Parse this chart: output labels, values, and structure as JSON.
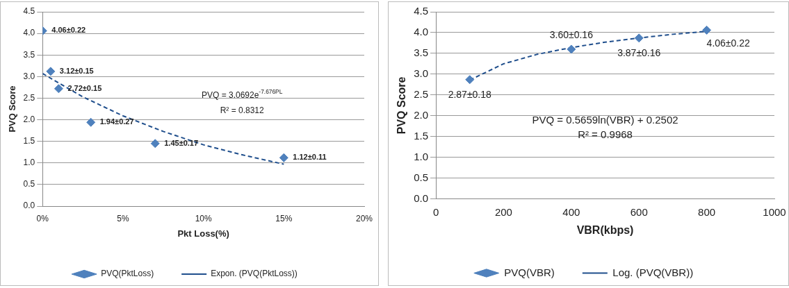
{
  "chart_data": [
    {
      "type": "scatter",
      "xlabel": "Pkt Loss(%)",
      "ylabel": "PVQ Score",
      "xlim": [
        0,
        20
      ],
      "xticks": [
        {
          "value": 0,
          "label": "0%"
        },
        {
          "value": 5,
          "label": "5%"
        },
        {
          "value": 10,
          "label": "10%"
        },
        {
          "value": 15,
          "label": "15%"
        },
        {
          "value": 20,
          "label": "20%"
        }
      ],
      "ylim": [
        0,
        4.5
      ],
      "yticks": [
        {
          "value": 0,
          "label": "0.0"
        },
        {
          "value": 0.5,
          "label": "0.5"
        },
        {
          "value": 1,
          "label": "1.0"
        },
        {
          "value": 1.5,
          "label": "1.5"
        },
        {
          "value": 2,
          "label": "2.0"
        },
        {
          "value": 2.5,
          "label": "2.5"
        },
        {
          "value": 3,
          "label": "3.0"
        },
        {
          "value": 3.5,
          "label": "3.5"
        },
        {
          "value": 4,
          "label": "4.0"
        },
        {
          "value": 4.5,
          "label": "4.5"
        }
      ],
      "grid": "y",
      "legend": "bottom",
      "annotations": [
        "PVQ = 3.0692e$^{-7.676PL}$",
        "R² = 0.8312"
      ],
      "series": [
        {
          "name": "PVQ(PktLoss)",
          "type": "scatter",
          "color": "#4f81bd",
          "marker": "diamond",
          "x": [
            0,
            0.5,
            1,
            3,
            7,
            15
          ],
          "values": [
            4.06,
            3.12,
            2.72,
            1.94,
            1.45,
            1.12
          ],
          "value_labels": [
            "4.06±0.22",
            "3.12±0.15",
            "2.72±0.15",
            "1.94±0.27",
            "1.45±0.17",
            "1.12±0.11"
          ]
        },
        {
          "name": "Expon. (PVQ(PktLoss))",
          "type": "line",
          "color": "#1f4e8c",
          "line_style": "dashed",
          "marker": "none",
          "x": [
            0,
            2.5,
            5,
            7.5,
            10,
            12.5,
            15
          ],
          "values": [
            3.07,
            2.53,
            2.09,
            1.73,
            1.42,
            1.18,
            0.97
          ]
        }
      ]
    },
    {
      "type": "scatter",
      "xlabel": "VBR(kbps)",
      "ylabel": "PVQ Score",
      "xlim": [
        0,
        1000
      ],
      "xticks": [
        0,
        200,
        400,
        600,
        800,
        1000
      ],
      "ylim": [
        0,
        4.5
      ],
      "yticks": [
        {
          "value": 0,
          "label": "0.0"
        },
        {
          "value": 0.5,
          "label": "0.5"
        },
        {
          "value": 1,
          "label": "1.0"
        },
        {
          "value": 1.5,
          "label": "1.5"
        },
        {
          "value": 2,
          "label": "2.0"
        },
        {
          "value": 2.5,
          "label": "2.5"
        },
        {
          "value": 3,
          "label": "3.0"
        },
        {
          "value": 3.5,
          "label": "3.5"
        },
        {
          "value": 4,
          "label": "4.0"
        },
        {
          "value": 4.5,
          "label": "4.5"
        }
      ],
      "grid": "y",
      "legend": "bottom",
      "annotations": [
        "PVQ = 0.5659ln(VBR) + 0.2502",
        "R² = 0.9968"
      ],
      "series": [
        {
          "name": "PVQ(VBR)",
          "type": "scatter",
          "color": "#4f81bd",
          "marker": "diamond",
          "x": [
            100,
            400,
            600,
            800
          ],
          "values": [
            2.87,
            3.6,
            3.87,
            4.06
          ],
          "value_labels": [
            "2.87±0.18",
            "3.60±0.16",
            "3.87±0.16",
            "4.06±0.22"
          ]
        },
        {
          "name": "Log. (PVQ(VBR))",
          "type": "line",
          "color": "#1f4e8c",
          "line_style": "dashed",
          "marker": "none",
          "x": [
            100,
            200,
            300,
            400,
            500,
            600,
            700,
            800
          ],
          "values": [
            2.86,
            3.25,
            3.48,
            3.64,
            3.77,
            3.87,
            3.96,
            4.03
          ]
        }
      ]
    }
  ]
}
